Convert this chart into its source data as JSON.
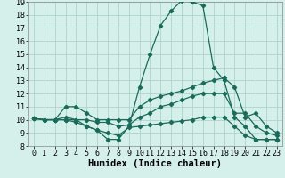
{
  "xlabel": "Humidex (Indice chaleur)",
  "bg_color": "#d5f0eb",
  "grid_color": "#aed4cc",
  "line_color": "#1a6b5a",
  "xlim": [
    -0.5,
    23.5
  ],
  "ylim": [
    8,
    19
  ],
  "xticks": [
    0,
    1,
    2,
    3,
    4,
    5,
    6,
    7,
    8,
    9,
    10,
    11,
    12,
    13,
    14,
    15,
    16,
    17,
    18,
    19,
    20,
    21,
    22,
    23
  ],
  "yticks": [
    8,
    9,
    10,
    11,
    12,
    13,
    14,
    15,
    16,
    17,
    18,
    19
  ],
  "series": [
    [
      10.1,
      10.0,
      10.0,
      10.0,
      10.0,
      9.5,
      9.2,
      8.5,
      8.5,
      9.5,
      12.5,
      15.0,
      17.2,
      18.3,
      19.1,
      19.0,
      18.7,
      14.0,
      13.0,
      10.2,
      9.5,
      8.5,
      8.5,
      8.5
    ],
    [
      10.1,
      10.0,
      10.0,
      11.0,
      11.0,
      10.5,
      10.0,
      10.0,
      10.0,
      10.0,
      11.0,
      11.5,
      11.8,
      12.0,
      12.2,
      12.5,
      12.8,
      13.0,
      13.2,
      12.5,
      10.2,
      10.5,
      9.5,
      9.0
    ],
    [
      10.1,
      10.0,
      10.0,
      10.2,
      10.0,
      10.0,
      9.8,
      9.8,
      9.5,
      9.6,
      10.2,
      10.5,
      11.0,
      11.2,
      11.5,
      11.8,
      12.0,
      12.0,
      12.0,
      10.5,
      10.5,
      9.5,
      9.0,
      8.8
    ],
    [
      10.1,
      10.0,
      10.0,
      10.0,
      9.8,
      9.5,
      9.2,
      9.0,
      8.8,
      9.4,
      9.5,
      9.6,
      9.7,
      9.8,
      9.9,
      10.0,
      10.2,
      10.2,
      10.2,
      9.5,
      8.8,
      8.5,
      8.5,
      8.5
    ]
  ],
  "marker": "D",
  "markersize": 2.2,
  "linewidth": 0.9,
  "xlabel_fontsize": 7.5,
  "tick_fontsize": 6.0
}
